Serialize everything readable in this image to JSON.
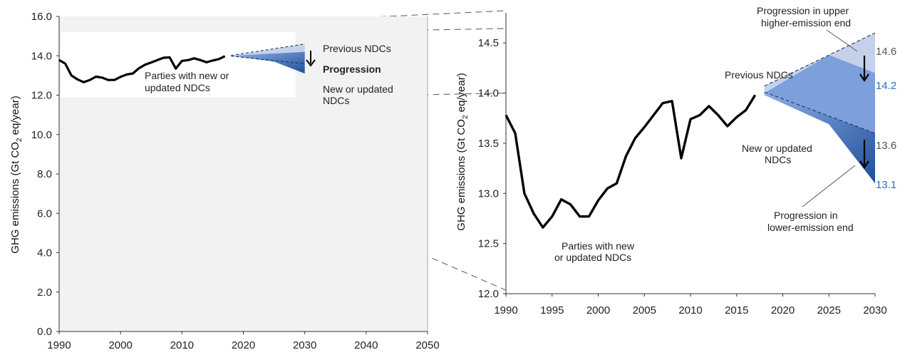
{
  "colors": {
    "history": "#000000",
    "panel_bg": "#f2f2f2",
    "upper_band": "#c5d1ea",
    "mid_band": "#7d9fdc",
    "low_band": "#1f4f9a",
    "grey_label": "#555555",
    "blue_label": "#2e6fc0",
    "connector": "#555555"
  },
  "chart_data": [
    {
      "type": "line",
      "ylabel_prefix": "GHG emissions (Gt CO",
      "ylabel_sub": "2",
      "ylabel_suffix": " eq/year)",
      "xlim": [
        1990,
        2050
      ],
      "ylim": [
        0,
        16
      ],
      "xticks": [
        "1990",
        "2000",
        "2010",
        "2020",
        "2030",
        "2040",
        "2050"
      ],
      "yticks": [
        "0.0",
        "2.0",
        "4.0",
        "6.0",
        "8.0",
        "10.0",
        "12.0",
        "14.0",
        "16.0"
      ],
      "grid": false,
      "annotations": {
        "parties": [
          "Parties with new or",
          "updated NDCs"
        ],
        "previous": "Previous NDCs",
        "progression": "Progression",
        "new": [
          "New or updated",
          "NDCs"
        ]
      },
      "bands": {
        "upper": [
          [
            2018,
            14.0
          ],
          [
            2030,
            14.6
          ],
          [
            2030,
            13.6
          ]
        ],
        "lower": [
          [
            2018,
            14.0
          ],
          [
            2025,
            13.7
          ],
          [
            2030,
            13.1
          ],
          [
            2030,
            14.2
          ]
        ]
      }
    },
    {
      "type": "line",
      "ylabel_prefix": "GHG emissions (Gt CO",
      "ylabel_sub": "2",
      "ylabel_suffix": " eq/year)",
      "xlim": [
        1990,
        2030
      ],
      "ylim": [
        12,
        14.8
      ],
      "xticks": [
        "1990",
        "1995",
        "2000",
        "2005",
        "2010",
        "2015",
        "2020",
        "2025",
        "2030"
      ],
      "yticks": [
        "12.0",
        "12.5",
        "13.0",
        "13.5",
        "14.0",
        "14.5"
      ],
      "grid": false,
      "series": [
        {
          "name": "Parties with new or updated NDCs",
          "x": [
            1990,
            1991,
            1992,
            1993,
            1994,
            1995,
            1996,
            1997,
            1998,
            1999,
            2000,
            2001,
            2002,
            2003,
            2004,
            2005,
            2006,
            2007,
            2008,
            2009,
            2010,
            2011,
            2012,
            2013,
            2014,
            2015,
            2016,
            2017
          ],
          "y": [
            13.78,
            13.6,
            13.0,
            12.8,
            12.66,
            12.77,
            12.94,
            12.89,
            12.77,
            12.77,
            12.93,
            13.05,
            13.1,
            13.37,
            13.55,
            13.66,
            13.78,
            13.9,
            13.92,
            13.35,
            13.74,
            13.78,
            13.87,
            13.78,
            13.67,
            13.76,
            13.83,
            13.98
          ]
        }
      ],
      "projections": {
        "previous_upper": [
          [
            2018,
            14.07
          ],
          [
            2030,
            14.6
          ]
        ],
        "previous_lower": [
          [
            2018,
            14.01
          ],
          [
            2030,
            13.6
          ]
        ],
        "new_upper": [
          [
            2018,
            14.0
          ],
          [
            2025,
            14.38
          ],
          [
            2030,
            14.2
          ]
        ],
        "new_lower": [
          [
            2018,
            13.98
          ],
          [
            2025,
            13.69
          ],
          [
            2030,
            13.1
          ]
        ]
      },
      "annotations": {
        "progression_upper": [
          "Progression in upper",
          "higher-emission end"
        ],
        "previous": "Previous NDCs",
        "new": [
          "New or updated",
          "NDCs"
        ],
        "progression_lower": [
          "Progression in",
          "lower-emission end"
        ],
        "parties": [
          "Parties with new",
          "or updated NDCs"
        ]
      },
      "end_values": [
        "14.6",
        "14.2",
        "13.6",
        "13.1"
      ]
    }
  ]
}
